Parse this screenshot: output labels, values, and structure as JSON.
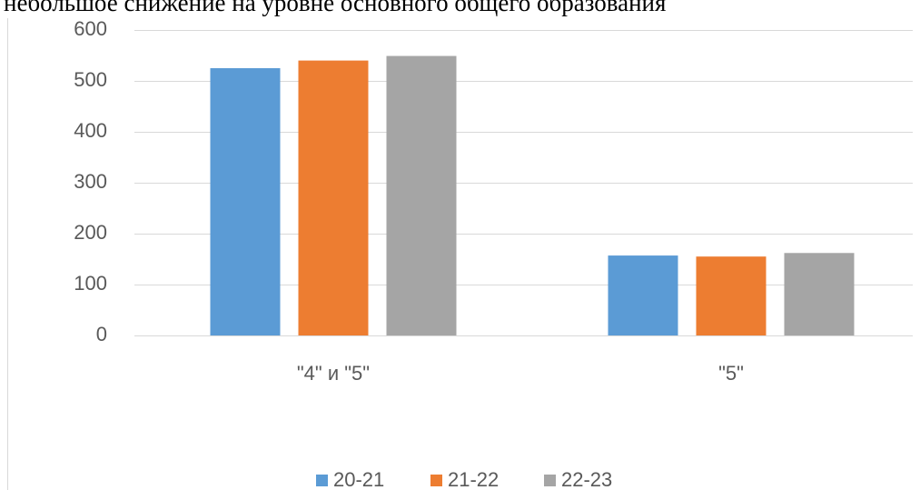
{
  "caption": "небольшое снижение на уровне основного общего образования",
  "chart_data": {
    "type": "bar",
    "categories": [
      "\"4\" и \"5\"",
      "\"5\""
    ],
    "series": [
      {
        "name": "20-21",
        "color": "#5b9bd5",
        "values": [
          525,
          157
        ]
      },
      {
        "name": "21-22",
        "color": "#ed7d31",
        "values": [
          540,
          155
        ]
      },
      {
        "name": "22-23",
        "color": "#a5a5a5",
        "values": [
          549,
          162
        ]
      }
    ],
    "ylim": [
      0,
      600
    ],
    "yticks": [
      0,
      100,
      200,
      300,
      400,
      500,
      600
    ],
    "grid": true,
    "legend": "bottom"
  }
}
